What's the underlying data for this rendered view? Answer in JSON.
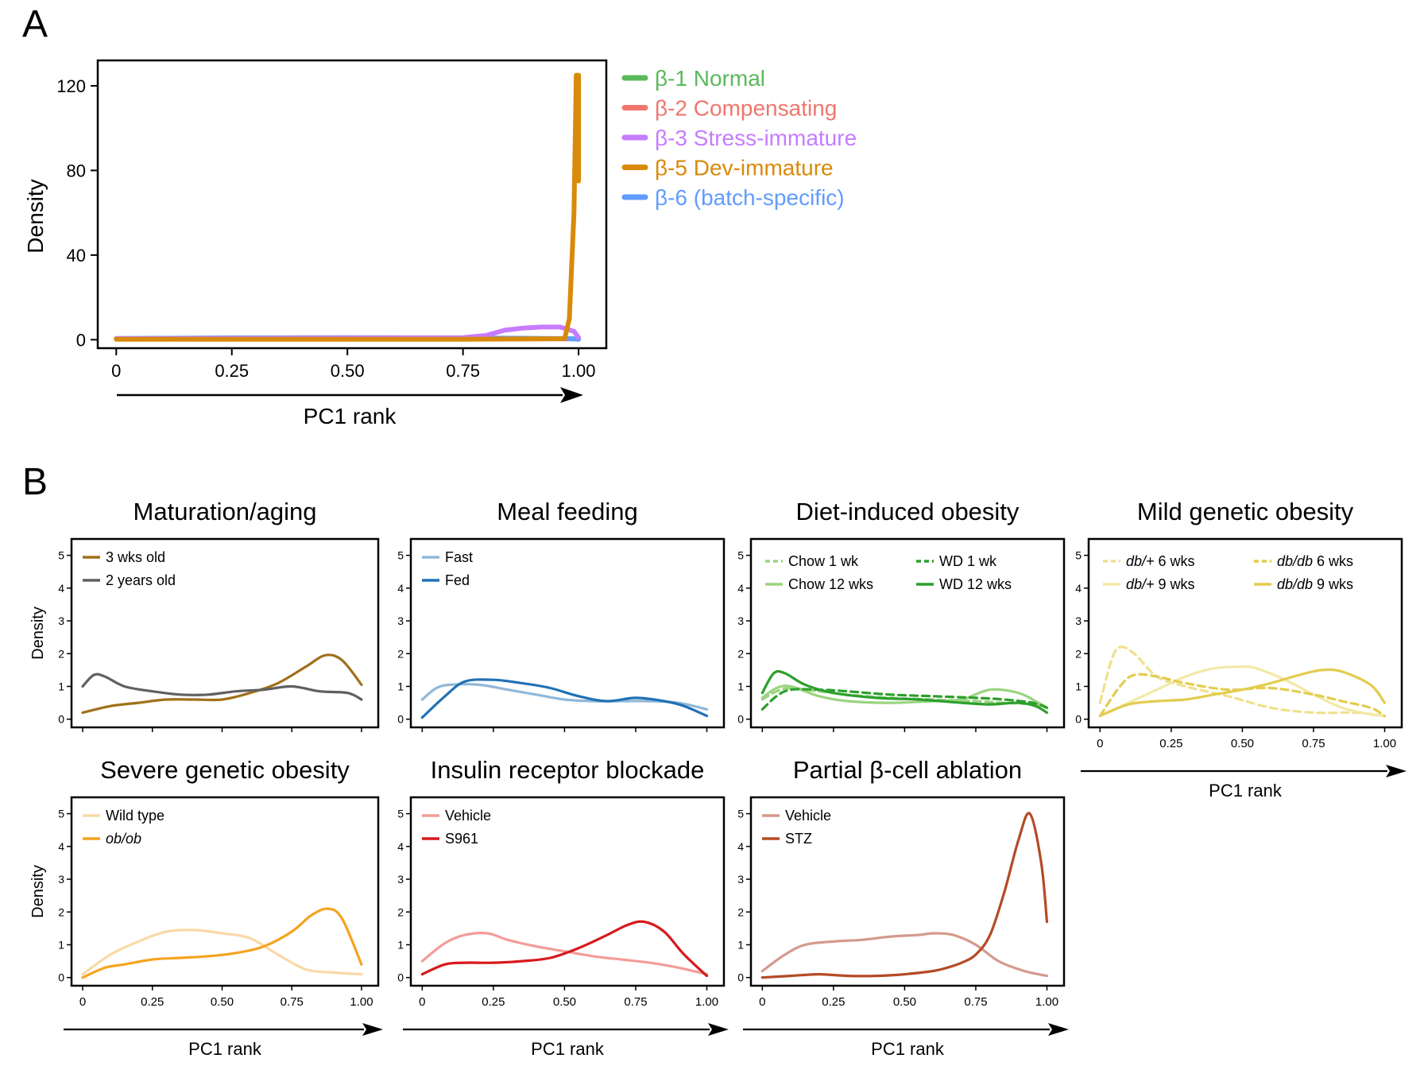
{
  "panel_a": {
    "letter": "A",
    "chart_data": {
      "type": "line",
      "xlabel": "PC1 rank",
      "ylabel": "Density",
      "xlim": [
        -0.04,
        1.06
      ],
      "ylim": [
        -4,
        132
      ],
      "xticks": [
        0,
        0.25,
        0.5,
        0.75,
        1.0
      ],
      "xtick_labels": [
        "0",
        "0.25",
        "0.50",
        "0.75",
        "1.00"
      ],
      "yticks": [
        0,
        40,
        80,
        120
      ],
      "ytick_labels": [
        "0",
        "40",
        "80",
        "120"
      ],
      "legend_position": "right",
      "series": [
        {
          "name": "β-1 Normal",
          "color": "#5cb85c",
          "x": [
            0,
            0.25,
            0.5,
            0.75,
            0.98,
            1.0
          ],
          "y": [
            0.4,
            0.5,
            0.5,
            0.5,
            0.5,
            0.3
          ]
        },
        {
          "name": "β-2 Compensating",
          "color": "#f0766d",
          "x": [
            0,
            0.25,
            0.5,
            0.75,
            0.98,
            1.0
          ],
          "y": [
            0.3,
            0.4,
            0.4,
            0.4,
            0.4,
            0.3
          ]
        },
        {
          "name": "β-3 Stress-immature",
          "color": "#c77cff",
          "x": [
            0,
            0.25,
            0.5,
            0.75,
            0.8,
            0.84,
            0.88,
            0.92,
            0.96,
            0.99,
            1.0
          ],
          "y": [
            0.5,
            0.6,
            0.8,
            1.0,
            2.0,
            4.5,
            5.5,
            6.0,
            6.0,
            4.0,
            1.0
          ]
        },
        {
          "name": "β-5 Dev-immature",
          "color": "#d98a0a",
          "x": [
            0,
            0.25,
            0.5,
            0.75,
            0.97,
            0.98,
            0.99,
            0.995,
            1.0,
            1.0
          ],
          "y": [
            0.2,
            0.2,
            0.2,
            0.2,
            0.5,
            10,
            60,
            125,
            125,
            75
          ]
        },
        {
          "name": "β-6 (batch-specific)",
          "color": "#619cff",
          "x": [
            0,
            0.25,
            0.5,
            0.75,
            0.98,
            1.0
          ],
          "y": [
            0.6,
            0.9,
            1.0,
            0.9,
            0.5,
            0.2
          ]
        }
      ]
    },
    "arrow_label": "PC1 rank"
  },
  "panel_b": {
    "letter": "B",
    "common": {
      "xlabel": "PC1 rank",
      "ylabel": "Density",
      "xticks": [
        0,
        0.25,
        0.5,
        0.75,
        1.0
      ],
      "xtick_labels": [
        "0",
        "0.25",
        "0.50",
        "0.75",
        "1.00"
      ],
      "yticks": [
        0,
        1,
        2,
        3,
        4,
        5
      ],
      "ytick_labels": [
        "0",
        "1",
        "2",
        "3",
        "4",
        "5"
      ],
      "xlim": [
        -0.04,
        1.06
      ],
      "ylim": [
        -0.25,
        5.5
      ]
    },
    "chart_data": [
      {
        "type": "line",
        "title": "Maturation/aging",
        "legend": {
          "columns": 1
        },
        "series": [
          {
            "name": "3 wks old",
            "color": "#a0701a",
            "dash": false,
            "x": [
              0,
              0.1,
              0.2,
              0.3,
              0.4,
              0.5,
              0.6,
              0.7,
              0.8,
              0.87,
              0.93,
              1.0
            ],
            "y": [
              0.2,
              0.4,
              0.5,
              0.6,
              0.6,
              0.6,
              0.8,
              1.1,
              1.6,
              1.95,
              1.8,
              1.05
            ]
          },
          {
            "name": "2 years old",
            "color": "#606060",
            "dash": false,
            "x": [
              0,
              0.04,
              0.08,
              0.15,
              0.25,
              0.35,
              0.45,
              0.55,
              0.65,
              0.75,
              0.85,
              0.95,
              1.0
            ],
            "y": [
              1.0,
              1.35,
              1.3,
              1.0,
              0.85,
              0.75,
              0.75,
              0.85,
              0.9,
              1.0,
              0.85,
              0.8,
              0.6
            ]
          }
        ]
      },
      {
        "type": "line",
        "title": "Meal feeding",
        "legend": {
          "columns": 1
        },
        "series": [
          {
            "name": "Fast",
            "color": "#8fb8d8",
            "dash": false,
            "x": [
              0,
              0.05,
              0.1,
              0.2,
              0.3,
              0.4,
              0.5,
              0.6,
              0.7,
              0.8,
              0.9,
              1.0
            ],
            "y": [
              0.6,
              0.95,
              1.05,
              1.05,
              0.9,
              0.75,
              0.6,
              0.55,
              0.55,
              0.55,
              0.5,
              0.3
            ]
          },
          {
            "name": "Fed",
            "color": "#2171b5",
            "dash": false,
            "x": [
              0,
              0.08,
              0.15,
              0.25,
              0.35,
              0.45,
              0.55,
              0.65,
              0.75,
              0.85,
              0.92,
              1.0
            ],
            "y": [
              0.05,
              0.7,
              1.15,
              1.2,
              1.1,
              0.95,
              0.7,
              0.55,
              0.65,
              0.55,
              0.4,
              0.1
            ]
          }
        ]
      },
      {
        "type": "line",
        "title": "Diet-induced obesity",
        "legend": {
          "columns": 2
        },
        "series": [
          {
            "name": "Chow 1 wk",
            "color": "#9bd480",
            "dash": true,
            "x": [
              0,
              0.05,
              0.1,
              0.2,
              0.3,
              0.45,
              0.6,
              0.75,
              0.85,
              0.95,
              1.0
            ],
            "y": [
              0.6,
              0.85,
              0.95,
              0.85,
              0.75,
              0.65,
              0.6,
              0.55,
              0.5,
              0.45,
              0.35
            ]
          },
          {
            "name": "Chow 12 wks",
            "color": "#9bd480",
            "dash": false,
            "x": [
              0,
              0.05,
              0.1,
              0.2,
              0.3,
              0.45,
              0.6,
              0.7,
              0.8,
              0.9,
              0.97,
              1.0
            ],
            "y": [
              0.65,
              0.95,
              1.0,
              0.7,
              0.55,
              0.5,
              0.55,
              0.6,
              0.9,
              0.8,
              0.5,
              0.35
            ]
          },
          {
            "name": "WD 1 wk",
            "color": "#2ca02c",
            "dash": true,
            "x": [
              0,
              0.05,
              0.1,
              0.2,
              0.3,
              0.45,
              0.6,
              0.75,
              0.85,
              0.95,
              1.0
            ],
            "y": [
              0.3,
              0.7,
              0.9,
              0.9,
              0.85,
              0.75,
              0.7,
              0.65,
              0.6,
              0.5,
              0.35
            ]
          },
          {
            "name": "WD 12 wks",
            "color": "#2ca02c",
            "dash": false,
            "x": [
              0,
              0.04,
              0.08,
              0.15,
              0.25,
              0.4,
              0.55,
              0.7,
              0.8,
              0.9,
              0.96,
              1.0
            ],
            "y": [
              0.8,
              1.4,
              1.4,
              1.05,
              0.8,
              0.65,
              0.6,
              0.5,
              0.45,
              0.5,
              0.4,
              0.2
            ]
          }
        ]
      },
      {
        "type": "line",
        "title": "Mild genetic obesity",
        "legend": {
          "columns": 2
        },
        "series": [
          {
            "name_italic": "db/+",
            "name_rest": " 6 wks",
            "color": "#f0e08c",
            "dash": true,
            "x": [
              0,
              0.04,
              0.07,
              0.12,
              0.2,
              0.3,
              0.45,
              0.6,
              0.75,
              0.9,
              1.0
            ],
            "y": [
              0.5,
              1.8,
              2.2,
              2.0,
              1.3,
              1.0,
              0.7,
              0.35,
              0.2,
              0.2,
              0.1
            ]
          },
          {
            "name_italic": "db/+",
            "name_rest": " 9 wks",
            "color": "#f2e9a6",
            "dash": false,
            "x": [
              0,
              0.1,
              0.2,
              0.3,
              0.4,
              0.5,
              0.55,
              0.65,
              0.75,
              0.85,
              0.95,
              1.0
            ],
            "y": [
              0.1,
              0.5,
              0.9,
              1.3,
              1.55,
              1.6,
              1.55,
              1.2,
              0.75,
              0.35,
              0.15,
              0.1
            ]
          },
          {
            "name_italic": "db/db",
            "name_rest": " 6 wks",
            "color": "#e3cc4f",
            "dash": true,
            "x": [
              0,
              0.07,
              0.12,
              0.2,
              0.3,
              0.45,
              0.6,
              0.75,
              0.85,
              0.95,
              1.0
            ],
            "y": [
              0.1,
              1.0,
              1.35,
              1.3,
              1.1,
              0.9,
              0.95,
              0.75,
              0.55,
              0.35,
              0.1
            ]
          },
          {
            "name_italic": "db/db",
            "name_rest": " 9 wks",
            "color": "#e3cc4f",
            "dash": false,
            "x": [
              0,
              0.1,
              0.2,
              0.3,
              0.4,
              0.5,
              0.6,
              0.7,
              0.78,
              0.85,
              0.95,
              1.0
            ],
            "y": [
              0.1,
              0.45,
              0.55,
              0.6,
              0.75,
              0.9,
              1.1,
              1.35,
              1.5,
              1.45,
              1.05,
              0.5
            ]
          }
        ]
      },
      {
        "type": "line",
        "title": "Severe genetic obesity",
        "legend": {
          "columns": 1
        },
        "series": [
          {
            "name": "Wild type",
            "color": "#fad9a8",
            "dash": false,
            "x": [
              0,
              0.1,
              0.2,
              0.3,
              0.4,
              0.5,
              0.6,
              0.7,
              0.8,
              0.9,
              1.0
            ],
            "y": [
              0.1,
              0.7,
              1.1,
              1.4,
              1.45,
              1.35,
              1.2,
              0.7,
              0.25,
              0.15,
              0.1
            ]
          },
          {
            "name_italic": "ob/ob",
            "name_rest": "",
            "color": "#f5a41f",
            "dash": false,
            "x": [
              0,
              0.08,
              0.15,
              0.25,
              0.35,
              0.45,
              0.55,
              0.65,
              0.75,
              0.82,
              0.88,
              0.93,
              1.0
            ],
            "y": [
              0.0,
              0.3,
              0.4,
              0.55,
              0.6,
              0.65,
              0.75,
              0.95,
              1.4,
              1.9,
              2.1,
              1.8,
              0.4
            ]
          }
        ]
      },
      {
        "type": "line",
        "title": "Insulin receptor blockade",
        "legend": {
          "columns": 1
        },
        "series": [
          {
            "name": "Vehicle",
            "color": "#f39c99",
            "dash": false,
            "x": [
              0,
              0.08,
              0.15,
              0.23,
              0.3,
              0.4,
              0.5,
              0.6,
              0.7,
              0.8,
              0.9,
              1.0
            ],
            "y": [
              0.5,
              1.05,
              1.3,
              1.35,
              1.15,
              0.95,
              0.8,
              0.65,
              0.55,
              0.45,
              0.3,
              0.1
            ]
          },
          {
            "name": "S961",
            "color": "#d7191c",
            "dash": false,
            "x": [
              0,
              0.08,
              0.15,
              0.25,
              0.35,
              0.45,
              0.55,
              0.65,
              0.72,
              0.78,
              0.85,
              0.92,
              1.0
            ],
            "y": [
              0.1,
              0.4,
              0.45,
              0.45,
              0.5,
              0.6,
              0.9,
              1.3,
              1.6,
              1.7,
              1.4,
              0.7,
              0.05
            ]
          }
        ]
      },
      {
        "type": "line",
        "title": "Partial β-cell ablation",
        "legend": {
          "columns": 1
        },
        "series": [
          {
            "name": "Vehicle",
            "color": "#d49a8c",
            "dash": false,
            "x": [
              0,
              0.08,
              0.15,
              0.25,
              0.35,
              0.45,
              0.55,
              0.6,
              0.67,
              0.75,
              0.83,
              0.92,
              1.0
            ],
            "y": [
              0.2,
              0.7,
              1.0,
              1.1,
              1.15,
              1.25,
              1.3,
              1.35,
              1.3,
              1.0,
              0.5,
              0.2,
              0.05
            ]
          },
          {
            "name": "STZ",
            "color": "#b54a26",
            "dash": false,
            "x": [
              0,
              0.1,
              0.2,
              0.3,
              0.4,
              0.5,
              0.6,
              0.65,
              0.7,
              0.75,
              0.8,
              0.85,
              0.9,
              0.94,
              0.98,
              1.0
            ],
            "y": [
              0.0,
              0.05,
              0.1,
              0.05,
              0.05,
              0.1,
              0.2,
              0.3,
              0.45,
              0.7,
              1.3,
              2.6,
              4.2,
              5.0,
              3.5,
              1.7
            ]
          }
        ]
      }
    ]
  }
}
